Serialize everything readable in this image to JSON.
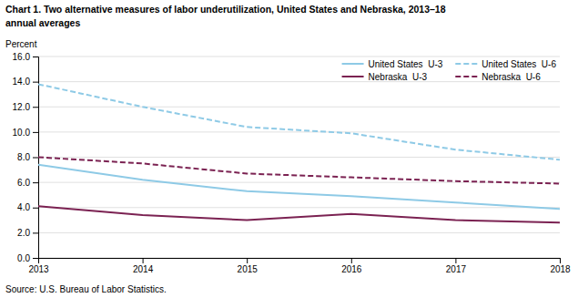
{
  "chart_data": {
    "type": "line",
    "title": "Chart 1. Two alternative measures of labor underutilization, United States and Nebraska, 2013–18",
    "subtitle": "annual averages",
    "ylabel": "Percent",
    "source": "Source: U.S. Bureau of Labor Statistics.",
    "x": [
      2013,
      2014,
      2015,
      2016,
      2017,
      2018
    ],
    "xlim": [
      2013,
      2018
    ],
    "xticks": [
      2013,
      2014,
      2015,
      2016,
      2017,
      2018
    ],
    "ylim": [
      0.0,
      16.0
    ],
    "yticks": [
      {
        "value": 0.0,
        "label": "0.0"
      },
      {
        "value": 2.0,
        "label": "2.0"
      },
      {
        "value": 4.0,
        "label": "4.0"
      },
      {
        "value": 6.0,
        "label": "6.0"
      },
      {
        "value": 8.0,
        "label": "8.0"
      },
      {
        "value": 10.0,
        "label": "10.0"
      },
      {
        "value": 12.0,
        "label": "12.0"
      },
      {
        "value": 14.0,
        "label": "14.0"
      },
      {
        "value": 16.0,
        "label": "16.0"
      }
    ],
    "grid": true,
    "legend": "top-right",
    "series": [
      {
        "name": "United States  U-3",
        "color": "#8ECAE6",
        "line_style": "solid",
        "values": [
          7.4,
          6.2,
          5.3,
          4.9,
          4.4,
          3.9
        ]
      },
      {
        "name": "United States  U-6",
        "color": "#8ECAE6",
        "line_style": "dashed",
        "values": [
          13.8,
          12.0,
          10.4,
          9.9,
          8.6,
          7.8
        ]
      },
      {
        "name": "Nebraska  U-3",
        "color": "#7B2252",
        "line_style": "solid",
        "values": [
          4.1,
          3.4,
          3.0,
          3.5,
          3.0,
          2.8
        ]
      },
      {
        "name": "Nebraska  U-6",
        "color": "#7B2252",
        "line_style": "dashed",
        "values": [
          8.0,
          7.5,
          6.7,
          6.4,
          6.1,
          5.9
        ]
      }
    ]
  }
}
